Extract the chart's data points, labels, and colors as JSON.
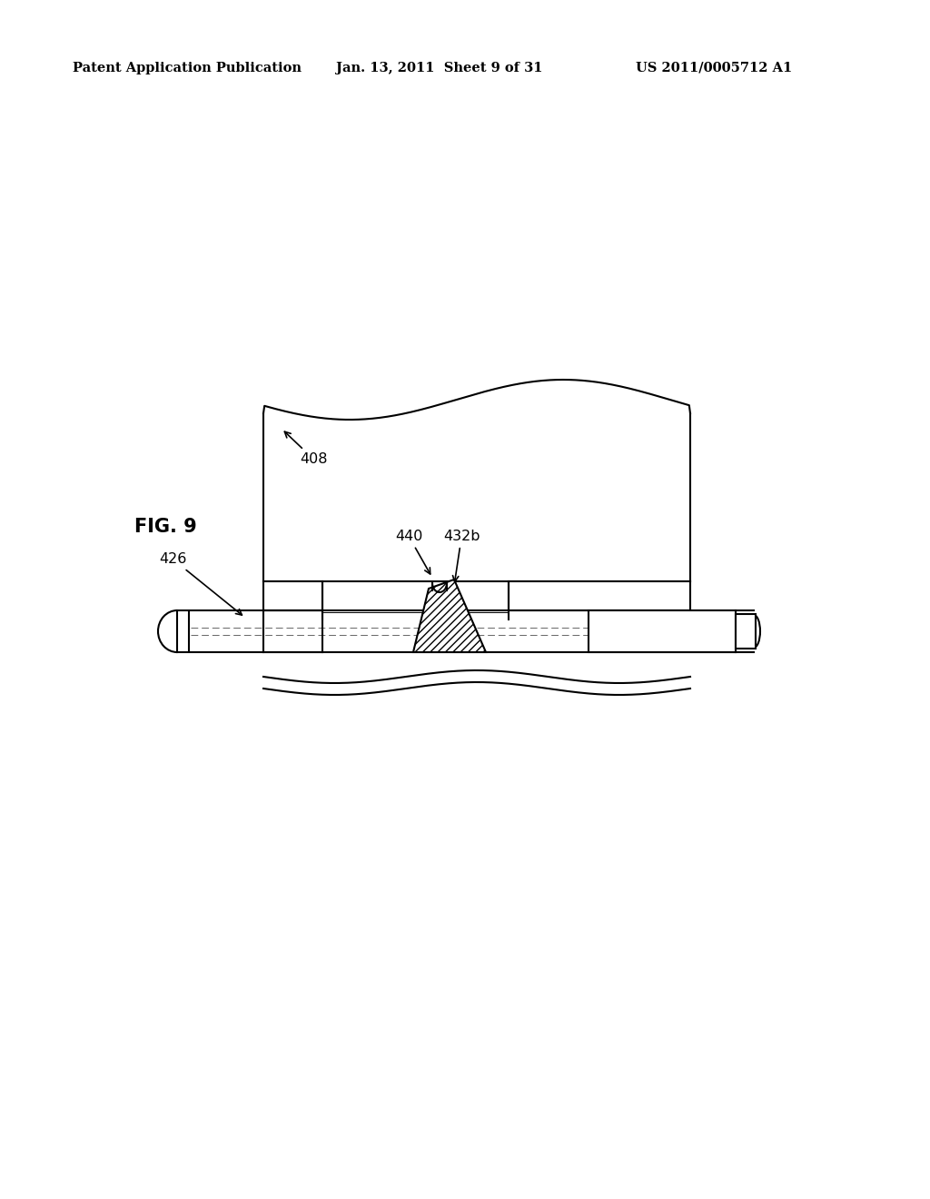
{
  "background_color": "#ffffff",
  "line_color": "#000000",
  "header_left": "Patent Application Publication",
  "header_mid": "Jan. 13, 2011  Sheet 9 of 31",
  "header_right": "US 2011/0005712 A1",
  "fig_label": "FIG. 9",
  "header_fontsize": 10.5,
  "label_fontsize": 11.5,
  "figlabel_fontsize": 15
}
